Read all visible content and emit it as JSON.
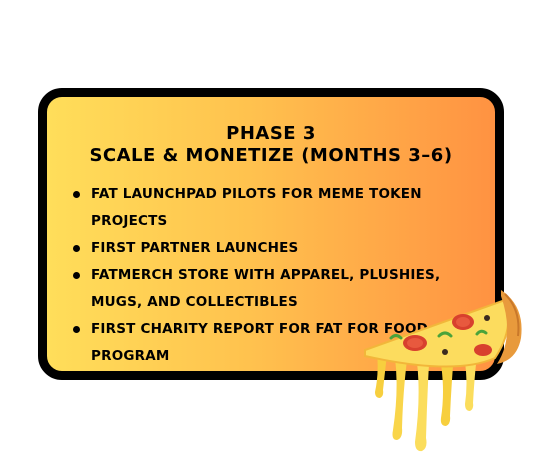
{
  "phase": {
    "title_line1": "Phase 3",
    "title_line2": "Scale & Monetize (Months 3–6)"
  },
  "items": [
    "FAT Launchpad pilots for meme token projects",
    "First partner launches",
    "FATMERCH store with apparel, plushies, mugs, and collectibles",
    "First charity report for FAT for Food program"
  ],
  "decoration": {
    "icon": "pizza-slice-icon"
  },
  "colors": {
    "gradient_start": "#FFDE5A",
    "gradient_end": "#FF9242",
    "border": "#000000"
  }
}
